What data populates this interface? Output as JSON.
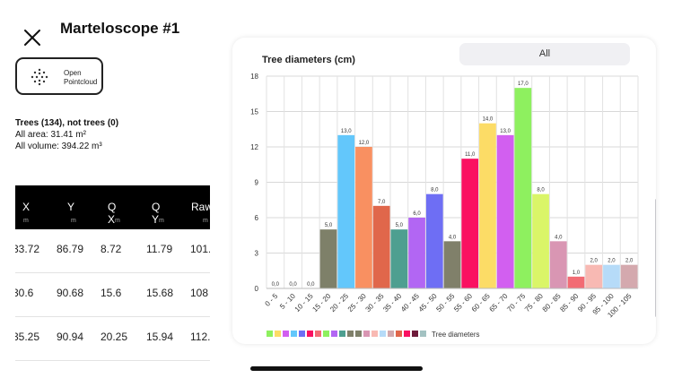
{
  "header": {
    "title": "Marteloscope #1",
    "open_button_line1": "Open",
    "open_button_line2": "Pointcloud"
  },
  "stats": {
    "trees": "Trees (134), not trees (0)",
    "area": "All area: 31.41 m²",
    "volume": "All volume: 394.22 m³"
  },
  "table": {
    "columns": [
      {
        "label": "X",
        "unit": "m"
      },
      {
        "label": "Y",
        "unit": "m"
      },
      {
        "label": "Q X",
        "unit": "m"
      },
      {
        "label": "Q Y",
        "unit": "m"
      },
      {
        "label": "Raw",
        "unit": "m"
      }
    ],
    "rows": [
      [
        "33.72",
        "86.79",
        "8.72",
        "11.79",
        "101."
      ],
      [
        "30.6",
        "90.68",
        "15.6",
        "15.68",
        "108"
      ],
      [
        "35.25",
        "90.94",
        "20.25",
        "15.94",
        "112."
      ]
    ]
  },
  "filter": {
    "selected": "All"
  },
  "chart_data": {
    "type": "bar",
    "title": "Tree diameters (cm)",
    "legend_label": "Tree diameters",
    "categories": [
      "0 - 5",
      "5 - 10",
      "10 - 15",
      "15 - 20",
      "20 - 25",
      "25 - 30",
      "30 - 35",
      "35 - 40",
      "40 - 45",
      "45 - 50",
      "50 - 55",
      "55 - 60",
      "60 - 65",
      "65 - 70",
      "70 - 75",
      "75 - 80",
      "80 - 85",
      "85 - 90",
      "90 - 95",
      "95 - 100",
      "100 - 105"
    ],
    "values": [
      0,
      0,
      0,
      5,
      13,
      12,
      7,
      5,
      6,
      8,
      4,
      11,
      14,
      13,
      17,
      8,
      4,
      1,
      2,
      2,
      2
    ],
    "value_labels": [
      "0,0",
      "0,0",
      "0,0",
      "5,0",
      "13,0",
      "12,0",
      "7,0",
      "5,0",
      "6,0",
      "8,0",
      "4,0",
      "11,0",
      "14,0",
      "13,0",
      "17,0",
      "8,0",
      "4,0",
      "1,0",
      "2,0",
      "2,0",
      "2,0"
    ],
    "colors": [
      "#8a8a8a",
      "#8a8a8a",
      "#8a8a8a",
      "#7e8069",
      "#63c7fb",
      "#f99061",
      "#e0674b",
      "#4e9f90",
      "#b266f3",
      "#6e6ef4",
      "#80806a",
      "#fa1161",
      "#fcdc66",
      "#d25ff0",
      "#8ef05f",
      "#daf568",
      "#d996b3",
      "#f26b74",
      "#f8b9b3",
      "#b6dbf8",
      "#d4a9ae"
    ],
    "legend_colors": [
      "#8ef05f",
      "#fcdc66",
      "#d25ff0",
      "#63c7fb",
      "#6e6ef4",
      "#fa1161",
      "#f26b74",
      "#8ef05f",
      "#b266f3",
      "#4e9f90",
      "#80806a",
      "#7e8069",
      "#d996b3",
      "#f8b9b3",
      "#b6dbf8",
      "#d4a9ae",
      "#e0674b",
      "#fa1161",
      "#6e1a3a",
      "#a3c2c2"
    ],
    "y_ticks": [
      "0",
      "3",
      "6",
      "9",
      "12",
      "15",
      "18"
    ],
    "ylim": [
      0,
      18
    ]
  }
}
